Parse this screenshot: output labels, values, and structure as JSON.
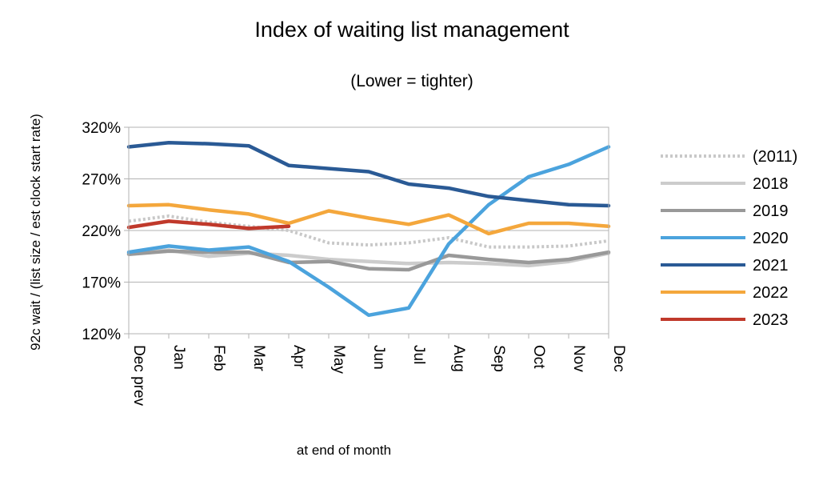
{
  "chart_data": {
    "type": "line",
    "title": "Index of waiting list management",
    "subtitle": "(Lower = tighter)",
    "xlabel": "at end of month",
    "ylabel": "92c wait / (list size / est clock start rate)",
    "categories": [
      "Dec prev",
      "Jan",
      "Feb",
      "Mar",
      "Apr",
      "May",
      "Jun",
      "Jul",
      "Aug",
      "Sep",
      "Oct",
      "Nov",
      "Dec"
    ],
    "ylim": [
      120,
      320
    ],
    "yticks": [
      120,
      170,
      220,
      270,
      320
    ],
    "ytick_labels": [
      "120%",
      "170%",
      "220%",
      "270%",
      "320%"
    ],
    "grid": true,
    "legend_position": "right",
    "series": [
      {
        "name": "(2011)",
        "color": "#c8c8c8",
        "style": "dotted",
        "values": [
          229,
          234,
          228,
          224,
          220,
          208,
          206,
          208,
          213,
          204,
          204,
          205,
          210
        ]
      },
      {
        "name": "2018",
        "color": "#cccccc",
        "style": "solid",
        "values": [
          198,
          201,
          195,
          198,
          196,
          192,
          190,
          188,
          189,
          188,
          186,
          190,
          198
        ]
      },
      {
        "name": "2019",
        "color": "#999999",
        "style": "solid",
        "values": [
          197,
          200,
          199,
          199,
          189,
          190,
          183,
          182,
          196,
          192,
          189,
          192,
          199
        ]
      },
      {
        "name": "2020",
        "color": "#4ba3dd",
        "style": "solid",
        "values": [
          199,
          205,
          201,
          204,
          190,
          165,
          138,
          145,
          207,
          245,
          272,
          284,
          301
        ]
      },
      {
        "name": "2021",
        "color": "#2a5a95",
        "style": "solid",
        "values": [
          301,
          305,
          304,
          302,
          283,
          280,
          277,
          265,
          261,
          253,
          249,
          245,
          244
        ]
      },
      {
        "name": "2022",
        "color": "#f4a73c",
        "style": "solid",
        "values": [
          244,
          245,
          240,
          236,
          227,
          239,
          232,
          226,
          235,
          217,
          227,
          227,
          224
        ]
      },
      {
        "name": "2023",
        "color": "#c0392b",
        "style": "solid",
        "values": [
          223,
          229,
          226,
          222,
          224,
          null,
          null,
          null,
          null,
          null,
          null,
          null,
          null
        ]
      }
    ]
  }
}
